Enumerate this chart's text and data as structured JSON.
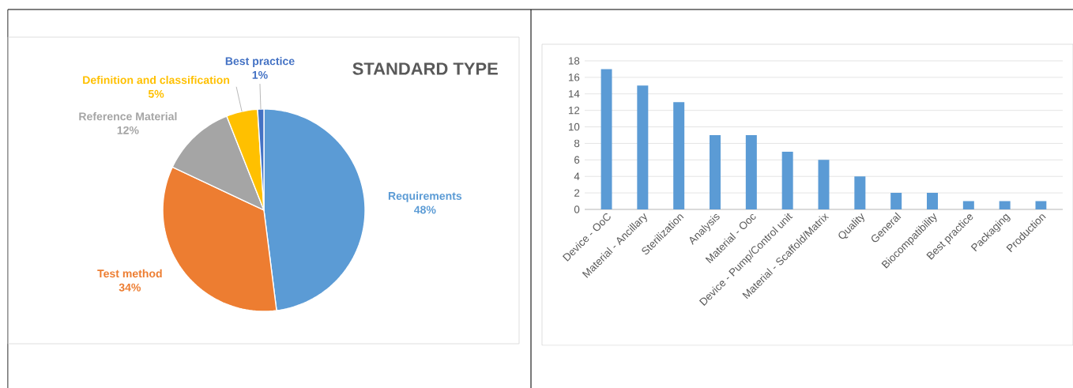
{
  "chart_data": [
    {
      "type": "pie",
      "title": "STANDARD TYPE",
      "categories": [
        "Requirements",
        "Test method",
        "Reference Material",
        "Definition and classification",
        "Best practice"
      ],
      "values": [
        48,
        34,
        12,
        5,
        1
      ],
      "value_labels": [
        "48%",
        "34%",
        "12%",
        "5%",
        "1%"
      ],
      "colors": [
        "#5b9bd5",
        "#ed7d31",
        "#a5a5a5",
        "#ffc000",
        "#4472c4"
      ]
    },
    {
      "type": "bar",
      "categories": [
        "Device - OoC",
        "Material - Ancillary",
        "Sterilization",
        "Analysis",
        "Material - Ooc",
        "Device - Pump/Control unit",
        "Material - Scaffold/Matrix",
        "Quality",
        "General",
        "Biocompatibility",
        "Best practice",
        "Packaging",
        "Production"
      ],
      "values": [
        17,
        15,
        13,
        9,
        9,
        7,
        6,
        4,
        2,
        2,
        1,
        1,
        1
      ],
      "color": "#5b9bd5",
      "ylim": [
        0,
        18
      ],
      "yticks": [
        0,
        2,
        4,
        6,
        8,
        10,
        12,
        14,
        16,
        18
      ],
      "grid": "y"
    }
  ]
}
